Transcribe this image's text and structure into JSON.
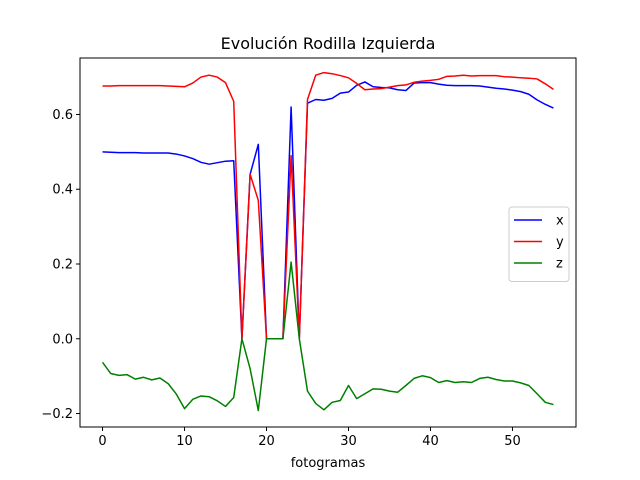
{
  "chart_data": {
    "type": "line",
    "title": "Evolución Rodilla Izquierda",
    "xlabel": "fotogramas",
    "ylabel": "",
    "xlim": [
      -2.75,
      57.75
    ],
    "ylim": [
      -0.236,
      0.751
    ],
    "xticks": [
      0,
      10,
      20,
      30,
      40,
      50
    ],
    "yticks": [
      -0.2,
      0.0,
      0.2,
      0.4,
      0.6
    ],
    "ytick_labels": [
      "−0.2",
      "0.0",
      "0.2",
      "0.4",
      "0.6"
    ],
    "grid": false,
    "legend_position": "center right",
    "x": [
      0,
      1,
      2,
      3,
      4,
      5,
      6,
      7,
      8,
      9,
      10,
      11,
      12,
      13,
      14,
      15,
      16,
      17,
      18,
      19,
      20,
      21,
      22,
      23,
      24,
      25,
      26,
      27,
      28,
      29,
      30,
      31,
      32,
      33,
      34,
      35,
      36,
      37,
      38,
      39,
      40,
      41,
      42,
      43,
      44,
      45,
      46,
      47,
      48,
      49,
      50,
      51,
      52,
      53,
      54,
      55
    ],
    "series": [
      {
        "name": "x",
        "color": "#0000ff",
        "values": [
          0.5,
          0.499,
          0.498,
          0.498,
          0.498,
          0.497,
          0.497,
          0.497,
          0.497,
          0.494,
          0.489,
          0.482,
          0.472,
          0.467,
          0.471,
          0.475,
          0.476,
          0.0,
          0.44,
          0.52,
          0.0,
          0.0,
          0.0,
          0.62,
          0.0,
          0.63,
          0.64,
          0.638,
          0.643,
          0.657,
          0.66,
          0.678,
          0.687,
          0.674,
          0.672,
          0.671,
          0.666,
          0.664,
          0.684,
          0.685,
          0.685,
          0.681,
          0.678,
          0.677,
          0.677,
          0.677,
          0.676,
          0.673,
          0.67,
          0.668,
          0.665,
          0.661,
          0.654,
          0.639,
          0.627,
          0.617
        ]
      },
      {
        "name": "y",
        "color": "#ff0000",
        "values": [
          0.676,
          0.676,
          0.677,
          0.677,
          0.677,
          0.677,
          0.677,
          0.677,
          0.676,
          0.675,
          0.674,
          0.684,
          0.7,
          0.705,
          0.7,
          0.685,
          0.635,
          0.0,
          0.44,
          0.37,
          0.0,
          0.0,
          0.0,
          0.49,
          0.0,
          0.64,
          0.705,
          0.712,
          0.709,
          0.704,
          0.698,
          0.683,
          0.666,
          0.668,
          0.669,
          0.673,
          0.677,
          0.679,
          0.686,
          0.689,
          0.691,
          0.694,
          0.702,
          0.703,
          0.705,
          0.703,
          0.704,
          0.704,
          0.704,
          0.701,
          0.7,
          0.698,
          0.697,
          0.695,
          0.682,
          0.667
        ]
      },
      {
        "name": "z",
        "color": "#008000",
        "values": [
          -0.063,
          -0.093,
          -0.098,
          -0.096,
          -0.108,
          -0.103,
          -0.11,
          -0.105,
          -0.12,
          -0.148,
          -0.187,
          -0.162,
          -0.153,
          -0.155,
          -0.166,
          -0.181,
          -0.157,
          0.0,
          -0.08,
          -0.192,
          0.0,
          0.0,
          0.0,
          0.205,
          0.0,
          -0.14,
          -0.173,
          -0.19,
          -0.17,
          -0.165,
          -0.125,
          -0.16,
          -0.147,
          -0.134,
          -0.135,
          -0.14,
          -0.143,
          -0.125,
          -0.106,
          -0.099,
          -0.104,
          -0.117,
          -0.112,
          -0.117,
          -0.115,
          -0.117,
          -0.106,
          -0.103,
          -0.109,
          -0.113,
          -0.113,
          -0.118,
          -0.125,
          -0.147,
          -0.17,
          -0.176
        ]
      }
    ]
  }
}
